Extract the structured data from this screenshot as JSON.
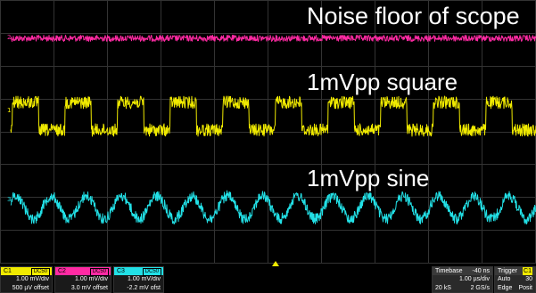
{
  "annotations": {
    "noise": "Noise floor of scope",
    "square": "1mVpp square",
    "sine": "1mVpp sine"
  },
  "channels": [
    {
      "id": "C1",
      "coupling": "DC50",
      "vdiv": "1.00 mV/div",
      "offset": "500 µV offset",
      "color": "#f0ea00",
      "trace": "square",
      "marker": "1"
    },
    {
      "id": "C2",
      "coupling": "DC50",
      "vdiv": "1.00 mV/div",
      "offset": "3.0 mV offset",
      "color": "#ff2aa3",
      "trace": "noise",
      "marker": "2"
    },
    {
      "id": "C3",
      "coupling": "DC50",
      "vdiv": "1.00 mV/div",
      "offset": "-2.2 mV ofst",
      "color": "#22e0e6",
      "trace": "sine",
      "marker": "3"
    }
  ],
  "timebase": {
    "label": "Timebase",
    "delay": "-40 ns",
    "tdiv": "1.00 µs/div",
    "samples": "20 kS",
    "rate": "2 GS/s"
  },
  "trigger": {
    "label": "Trigger",
    "channel": "C1",
    "mode": "Auto",
    "level": "30",
    "type": "Edge",
    "slope": "Posit"
  },
  "grid": {
    "h_divisions": 10,
    "v_divisions": 8,
    "line_color": "#333333",
    "background": "#000000"
  }
}
